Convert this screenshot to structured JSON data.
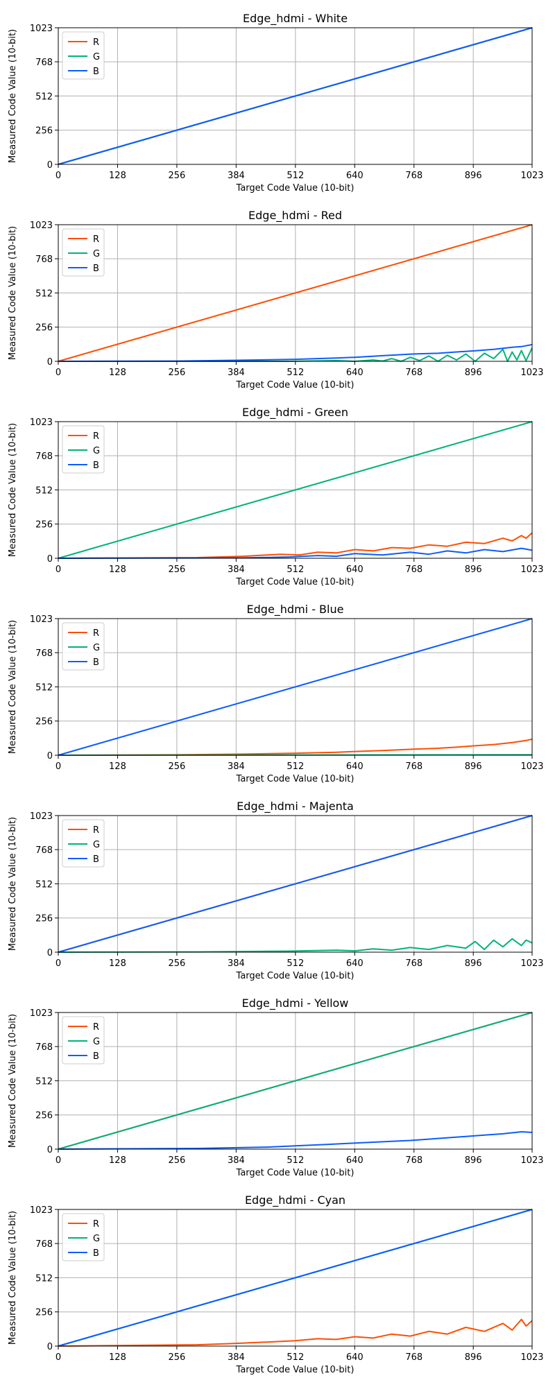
{
  "figure": {
    "background": "#ffffff"
  },
  "colors": {
    "R": "#ff4d00",
    "G": "#00b27a",
    "B": "#0a5cff",
    "grid": "#b0b0b0",
    "axes": "#000000"
  },
  "chart_data": [
    {
      "type": "line",
      "title": "Edge_hdmi - White",
      "xlabel": "Target Code Value (10-bit)",
      "ylabel": "Measured Code Value (10-bit)",
      "xlim": [
        0,
        1023
      ],
      "ylim": [
        0,
        1023
      ],
      "xticks": [
        0,
        128,
        256,
        384,
        512,
        640,
        768,
        896,
        1023
      ],
      "yticks": [
        0,
        256,
        512,
        768,
        1023
      ],
      "grid": true,
      "legend": "upper-left",
      "series": [
        {
          "name": "R",
          "color": "#ff4d00",
          "x": [
            0,
            1023
          ],
          "y": [
            0,
            1023
          ]
        },
        {
          "name": "G",
          "color": "#00b27a",
          "x": [
            0,
            1023
          ],
          "y": [
            0,
            1023
          ]
        },
        {
          "name": "B",
          "color": "#0a5cff",
          "x": [
            0,
            1023
          ],
          "y": [
            0,
            1023
          ]
        }
      ]
    },
    {
      "type": "line",
      "title": "Edge_hdmi - Red",
      "xlabel": "Target Code Value (10-bit)",
      "ylabel": "Measured Code Value (10-bit)",
      "xlim": [
        0,
        1023
      ],
      "ylim": [
        0,
        1023
      ],
      "xticks": [
        0,
        128,
        256,
        384,
        512,
        640,
        768,
        896,
        1023
      ],
      "yticks": [
        0,
        256,
        512,
        768,
        1023
      ],
      "grid": true,
      "legend": "upper-left",
      "series": [
        {
          "name": "R",
          "color": "#ff4d00",
          "x": [
            0,
            1023
          ],
          "y": [
            0,
            1023
          ]
        },
        {
          "name": "G",
          "color": "#00b27a",
          "x": [
            0,
            300,
            500,
            600,
            640,
            680,
            700,
            720,
            740,
            760,
            780,
            800,
            820,
            840,
            860,
            880,
            900,
            920,
            940,
            960,
            970,
            980,
            990,
            1000,
            1010,
            1023
          ],
          "y": [
            0,
            0,
            0,
            5,
            0,
            10,
            2,
            20,
            0,
            30,
            5,
            40,
            0,
            45,
            10,
            55,
            0,
            60,
            20,
            90,
            0,
            70,
            10,
            80,
            5,
            100
          ]
        },
        {
          "name": "B",
          "color": "#0a5cff",
          "x": [
            0,
            256,
            384,
            512,
            600,
            640,
            700,
            768,
            820,
            860,
            896,
            940,
            980,
            1000,
            1023
          ],
          "y": [
            0,
            2,
            8,
            15,
            25,
            30,
            42,
            55,
            60,
            70,
            78,
            90,
            105,
            110,
            125
          ]
        }
      ]
    },
    {
      "type": "line",
      "title": "Edge_hdmi - Green",
      "xlabel": "Target Code Value (10-bit)",
      "ylabel": "Measured Code Value (10-bit)",
      "xlim": [
        0,
        1023
      ],
      "ylim": [
        0,
        1023
      ],
      "xticks": [
        0,
        128,
        256,
        384,
        512,
        640,
        768,
        896,
        1023
      ],
      "yticks": [
        0,
        256,
        512,
        768,
        1023
      ],
      "grid": true,
      "legend": "upper-left",
      "series": [
        {
          "name": "R",
          "color": "#ff4d00",
          "x": [
            0,
            300,
            400,
            480,
            520,
            560,
            600,
            640,
            680,
            720,
            760,
            800,
            840,
            880,
            920,
            960,
            980,
            1000,
            1010,
            1023
          ],
          "y": [
            0,
            5,
            15,
            30,
            25,
            45,
            40,
            65,
            55,
            80,
            75,
            100,
            90,
            120,
            110,
            150,
            130,
            170,
            150,
            190
          ]
        },
        {
          "name": "G",
          "color": "#00b27a",
          "x": [
            0,
            1023
          ],
          "y": [
            0,
            1023
          ]
        },
        {
          "name": "B",
          "color": "#0a5cff",
          "x": [
            0,
            400,
            500,
            560,
            600,
            640,
            700,
            760,
            800,
            840,
            880,
            920,
            960,
            1000,
            1023
          ],
          "y": [
            0,
            3,
            10,
            20,
            15,
            35,
            25,
            45,
            30,
            55,
            40,
            65,
            50,
            75,
            60
          ]
        }
      ]
    },
    {
      "type": "line",
      "title": "Edge_hdmi - Blue",
      "xlabel": "Target Code Value (10-bit)",
      "ylabel": "Measured Code Value (10-bit)",
      "xlim": [
        0,
        1023
      ],
      "ylim": [
        0,
        1023
      ],
      "xticks": [
        0,
        128,
        256,
        384,
        512,
        640,
        768,
        896,
        1023
      ],
      "yticks": [
        0,
        256,
        512,
        768,
        1023
      ],
      "grid": true,
      "legend": "upper-left",
      "series": [
        {
          "name": "R",
          "color": "#ff4d00",
          "x": [
            0,
            256,
            384,
            512,
            600,
            640,
            700,
            768,
            820,
            860,
            896,
            940,
            980,
            1010,
            1023
          ],
          "y": [
            0,
            3,
            8,
            15,
            22,
            28,
            35,
            45,
            52,
            60,
            70,
            80,
            95,
            110,
            120
          ]
        },
        {
          "name": "G",
          "color": "#00b27a",
          "x": [
            0,
            1023
          ],
          "y": [
            0,
            3
          ]
        },
        {
          "name": "B",
          "color": "#0a5cff",
          "x": [
            0,
            1023
          ],
          "y": [
            0,
            1023
          ]
        }
      ]
    },
    {
      "type": "line",
      "title": "Edge_hdmi - Majenta",
      "xlabel": "Target Code Value (10-bit)",
      "ylabel": "Measured Code Value (10-bit)",
      "xlim": [
        0,
        1023
      ],
      "ylim": [
        0,
        1023
      ],
      "xticks": [
        0,
        128,
        256,
        384,
        512,
        640,
        768,
        896,
        1023
      ],
      "yticks": [
        0,
        256,
        512,
        768,
        1023
      ],
      "grid": true,
      "legend": "upper-left",
      "series": [
        {
          "name": "R",
          "color": "#ff4d00",
          "x": [
            0,
            1023
          ],
          "y": [
            0,
            1023
          ]
        },
        {
          "name": "G",
          "color": "#00b27a",
          "x": [
            0,
            300,
            500,
            600,
            640,
            680,
            720,
            760,
            800,
            840,
            880,
            900,
            920,
            940,
            960,
            980,
            1000,
            1010,
            1023
          ],
          "y": [
            0,
            2,
            8,
            15,
            10,
            25,
            15,
            35,
            20,
            50,
            30,
            80,
            20,
            90,
            40,
            100,
            50,
            90,
            70
          ]
        },
        {
          "name": "B",
          "color": "#0a5cff",
          "x": [
            0,
            1023
          ],
          "y": [
            0,
            1023
          ]
        }
      ]
    },
    {
      "type": "line",
      "title": "Edge_hdmi - Yellow",
      "xlabel": "Target Code Value (10-bit)",
      "ylabel": "Measured Code Value (10-bit)",
      "xlim": [
        0,
        1023
      ],
      "ylim": [
        0,
        1023
      ],
      "xticks": [
        0,
        128,
        256,
        384,
        512,
        640,
        768,
        896,
        1023
      ],
      "yticks": [
        0,
        256,
        512,
        768,
        1023
      ],
      "grid": true,
      "legend": "upper-left",
      "series": [
        {
          "name": "R",
          "color": "#ff4d00",
          "x": [
            0,
            1023
          ],
          "y": [
            0,
            1023
          ]
        },
        {
          "name": "G",
          "color": "#00b27a",
          "x": [
            0,
            1023
          ],
          "y": [
            0,
            1023
          ]
        },
        {
          "name": "B",
          "color": "#0a5cff",
          "x": [
            0,
            300,
            450,
            512,
            580,
            640,
            700,
            760,
            800,
            840,
            880,
            920,
            960,
            1000,
            1023
          ],
          "y": [
            0,
            5,
            15,
            25,
            35,
            45,
            55,
            65,
            75,
            85,
            95,
            105,
            115,
            130,
            125
          ]
        }
      ]
    },
    {
      "type": "line",
      "title": "Edge_hdmi - Cyan",
      "xlabel": "Target Code Value (10-bit)",
      "ylabel": "Measured Code Value (10-bit)",
      "xlim": [
        0,
        1023
      ],
      "ylim": [
        0,
        1023
      ],
      "xticks": [
        0,
        128,
        256,
        384,
        512,
        640,
        768,
        896,
        1023
      ],
      "yticks": [
        0,
        256,
        512,
        768,
        1023
      ],
      "grid": true,
      "legend": "upper-left",
      "series": [
        {
          "name": "R",
          "color": "#ff4d00",
          "x": [
            0,
            300,
            384,
            450,
            512,
            560,
            600,
            640,
            680,
            720,
            760,
            800,
            840,
            880,
            920,
            960,
            980,
            1000,
            1010,
            1023
          ],
          "y": [
            0,
            10,
            20,
            30,
            40,
            55,
            50,
            70,
            60,
            90,
            75,
            110,
            90,
            140,
            110,
            170,
            120,
            200,
            150,
            190
          ]
        },
        {
          "name": "G",
          "color": "#00b27a",
          "x": [
            0,
            1023
          ],
          "y": [
            0,
            1023
          ]
        },
        {
          "name": "B",
          "color": "#0a5cff",
          "x": [
            0,
            1023
          ],
          "y": [
            0,
            1023
          ]
        }
      ]
    }
  ]
}
